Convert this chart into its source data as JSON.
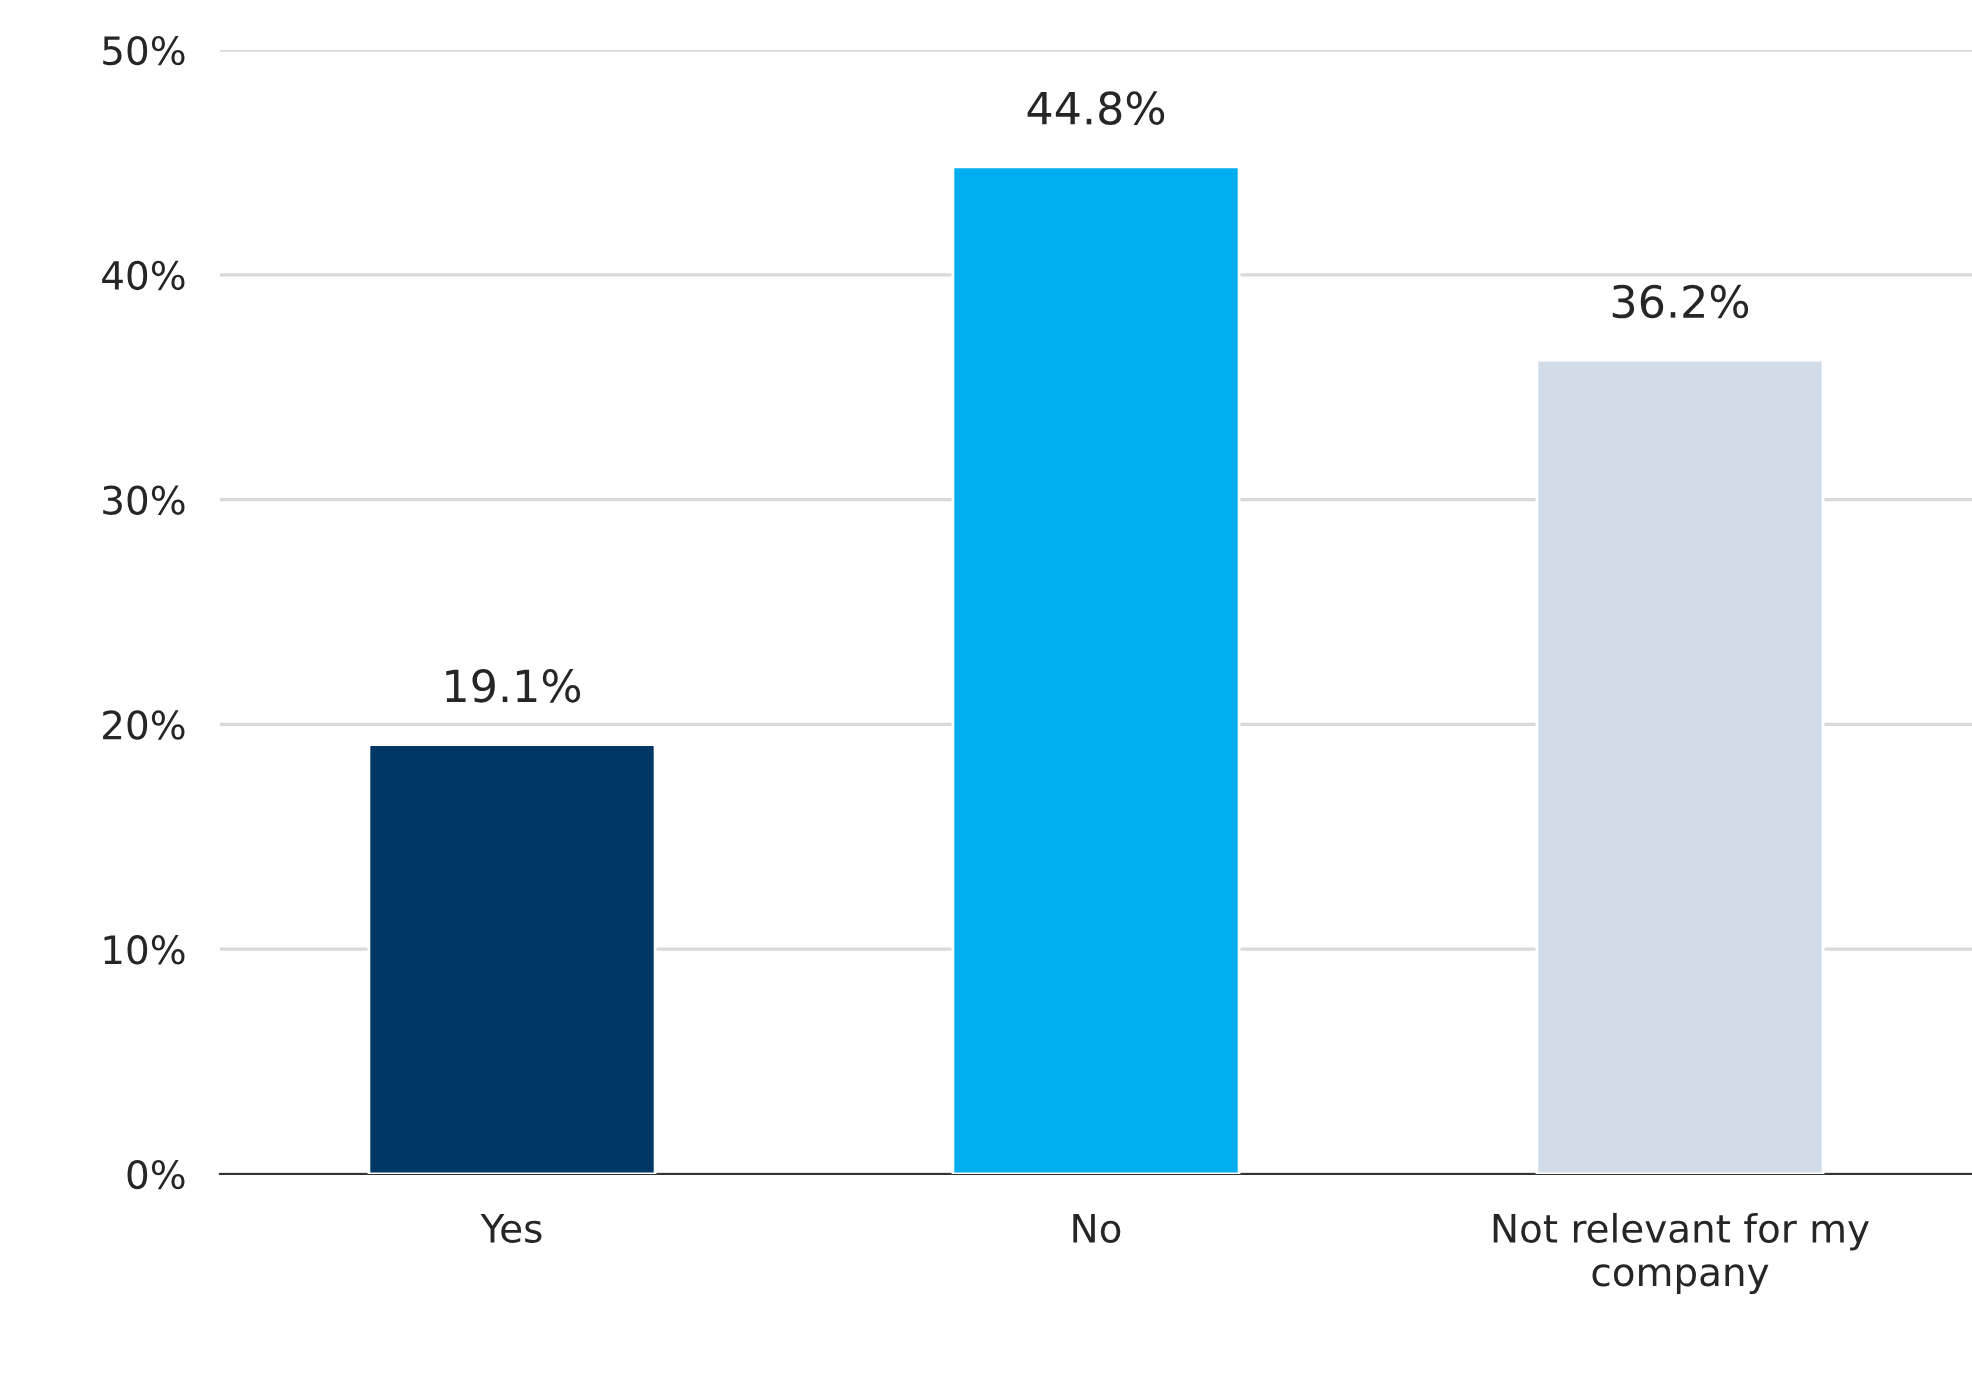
{
  "chart_data": {
    "type": "bar",
    "categories": [
      "Yes",
      "No",
      "Not relevant for my\ncompany"
    ],
    "values": [
      19.1,
      44.8,
      36.2
    ],
    "colors": [
      "#003764",
      "#00aeef",
      "#d0dde9"
    ],
    "value_labels": [
      "19.1%",
      "44.8%",
      "36.2%"
    ],
    "ylim": [
      0,
      50
    ],
    "yticks": [
      {
        "value": 0,
        "label": "0%"
      },
      {
        "value": 10,
        "label": "10%"
      },
      {
        "value": 20,
        "label": "20%"
      },
      {
        "value": 30,
        "label": "30%"
      },
      {
        "value": 40,
        "label": "40%"
      },
      {
        "value": 50,
        "label": "50%"
      }
    ],
    "grid": "y",
    "legend": false
  }
}
